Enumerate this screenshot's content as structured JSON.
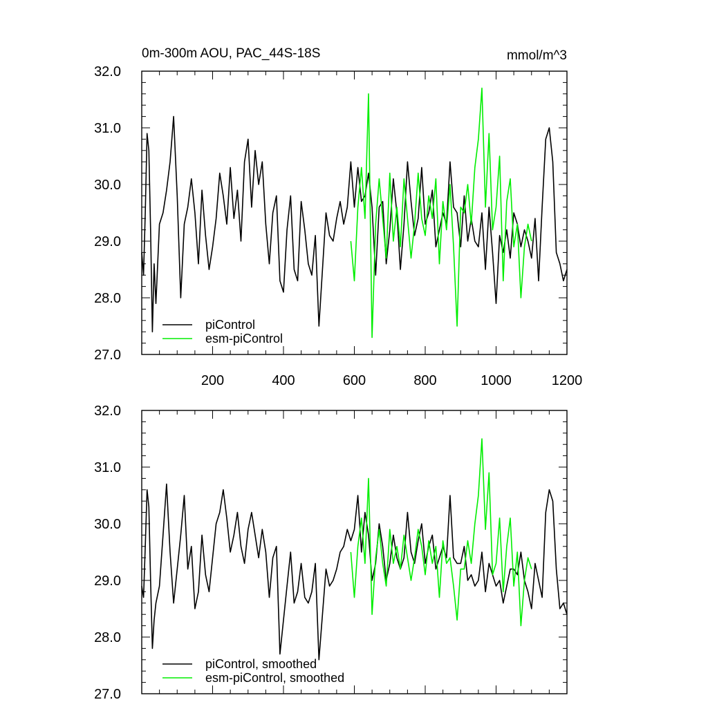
{
  "colors": {
    "piControl": "#000000",
    "esm_piControl": "#00ee00",
    "axis": "#000000",
    "background": "#ffffff"
  },
  "chart_data": [
    {
      "type": "line",
      "title": "0m-300m AOU, PAC_44S-18S",
      "units": "mmol/m^3",
      "xlim": [
        0,
        1200
      ],
      "ylim": [
        27.0,
        32.0
      ],
      "xtick_labels": [
        "200",
        "400",
        "600",
        "800",
        "1000",
        "1200"
      ],
      "xtick_values": [
        200,
        400,
        600,
        800,
        1000,
        1200
      ],
      "ytick_labels": [
        "27.0",
        "28.0",
        "29.0",
        "30.0",
        "31.0",
        "32.0"
      ],
      "ytick_values": [
        27,
        28,
        29,
        30,
        31,
        32
      ],
      "grid": false,
      "legend_position": "bottom-left",
      "series": [
        {
          "name": "piControl",
          "color": "#000000",
          "x": [
            0,
            5,
            10,
            15,
            20,
            25,
            30,
            35,
            40,
            50,
            60,
            70,
            80,
            90,
            100,
            110,
            120,
            130,
            140,
            150,
            160,
            170,
            180,
            190,
            200,
            210,
            220,
            230,
            240,
            250,
            260,
            270,
            280,
            290,
            300,
            310,
            320,
            330,
            340,
            350,
            360,
            370,
            380,
            390,
            400,
            410,
            420,
            430,
            440,
            450,
            460,
            470,
            480,
            490,
            500,
            510,
            520,
            530,
            540,
            550,
            560,
            570,
            580,
            590,
            600,
            610,
            620,
            630,
            640,
            650,
            660,
            670,
            680,
            690,
            700,
            710,
            720,
            730,
            740,
            750,
            760,
            770,
            780,
            790,
            800,
            810,
            820,
            830,
            840,
            850,
            860,
            870,
            880,
            890,
            900,
            910,
            920,
            930,
            940,
            950,
            960,
            970,
            980,
            990,
            1000,
            1010,
            1020,
            1030,
            1040,
            1050,
            1060,
            1070,
            1080,
            1090,
            1100,
            1110,
            1120,
            1130,
            1140,
            1150,
            1160,
            1170,
            1180,
            1190,
            1200
          ],
          "y": [
            28.8,
            28.4,
            29.5,
            30.9,
            30.6,
            29.2,
            27.4,
            28.6,
            27.9,
            29.3,
            29.5,
            29.9,
            30.4,
            31.2,
            29.8,
            28.0,
            29.3,
            29.6,
            30.1,
            29.5,
            28.6,
            29.9,
            29.1,
            28.5,
            28.9,
            29.4,
            30.2,
            29.8,
            29.3,
            30.3,
            29.4,
            29.9,
            29.0,
            30.4,
            30.8,
            29.6,
            30.6,
            30.0,
            30.4,
            29.3,
            28.6,
            29.5,
            29.8,
            28.3,
            28.1,
            29.2,
            29.8,
            28.5,
            28.3,
            29.7,
            29.2,
            28.6,
            28.4,
            29.1,
            27.5,
            28.5,
            29.5,
            29.1,
            29.0,
            29.4,
            29.7,
            29.3,
            29.6,
            30.4,
            29.6,
            30.3,
            29.7,
            29.8,
            30.2,
            29.6,
            28.4,
            29.6,
            29.7,
            28.6,
            29.2,
            30.1,
            29.5,
            28.5,
            29.3,
            30.4,
            29.7,
            29.1,
            29.4,
            30.3,
            29.3,
            29.5,
            29.9,
            28.9,
            29.2,
            29.5,
            29.3,
            30.4,
            29.6,
            29.5,
            28.9,
            29.8,
            29.0,
            29.4,
            29.0,
            28.9,
            29.5,
            28.5,
            29.6,
            28.8,
            27.9,
            29.1,
            28.8,
            29.2,
            28.7,
            29.5,
            29.3,
            28.9,
            29.2,
            29.0,
            28.7,
            29.4,
            28.3,
            29.6,
            30.8,
            31.0,
            30.4,
            28.8,
            28.6,
            28.3,
            28.5
          ]
        },
        {
          "name": "esm-piControl",
          "color": "#00ee00",
          "x": [
            590,
            600,
            610,
            620,
            630,
            640,
            650,
            660,
            670,
            680,
            690,
            700,
            710,
            720,
            730,
            740,
            750,
            760,
            770,
            780,
            790,
            800,
            810,
            820,
            830,
            840,
            850,
            860,
            870,
            880,
            890,
            900,
            910,
            920,
            930,
            940,
            950,
            960,
            970,
            980,
            990,
            1000,
            1010,
            1020,
            1030,
            1040,
            1050,
            1060,
            1070,
            1080,
            1090,
            1100
          ],
          "y": [
            29.0,
            28.3,
            29.6,
            30.3,
            29.4,
            31.6,
            27.3,
            29.3,
            30.1,
            29.4,
            28.7,
            30.2,
            29.0,
            29.6,
            28.9,
            30.1,
            29.4,
            28.7,
            29.3,
            30.2,
            29.4,
            29.1,
            29.8,
            29.4,
            30.1,
            28.6,
            29.7,
            29.2,
            30.0,
            28.9,
            27.5,
            29.6,
            29.5,
            30.0,
            29.3,
            30.3,
            30.8,
            31.7,
            29.6,
            30.9,
            29.2,
            29.6,
            30.5,
            28.3,
            29.7,
            30.1,
            28.9,
            29.3,
            28.0,
            28.9,
            29.3,
            29.0
          ]
        }
      ]
    },
    {
      "type": "line",
      "title": "",
      "xlim": [
        0,
        1200
      ],
      "ylim": [
        27.0,
        32.0
      ],
      "ytick_labels": [
        "27.0",
        "28.0",
        "29.0",
        "30.0",
        "31.0",
        "32.0"
      ],
      "ytick_values": [
        27,
        28,
        29,
        30,
        31,
        32
      ],
      "grid": false,
      "legend_position": "bottom-left",
      "series": [
        {
          "name": "piControl, smoothed",
          "color": "#000000",
          "x": [
            0,
            5,
            10,
            15,
            20,
            25,
            30,
            35,
            40,
            50,
            60,
            70,
            80,
            90,
            100,
            110,
            120,
            130,
            140,
            150,
            160,
            170,
            180,
            190,
            200,
            210,
            220,
            230,
            240,
            250,
            260,
            270,
            280,
            290,
            300,
            310,
            320,
            330,
            340,
            350,
            360,
            370,
            380,
            390,
            400,
            410,
            420,
            430,
            440,
            450,
            460,
            470,
            480,
            490,
            500,
            510,
            520,
            530,
            540,
            550,
            560,
            570,
            580,
            590,
            600,
            610,
            620,
            630,
            640,
            650,
            660,
            670,
            680,
            690,
            700,
            710,
            720,
            730,
            740,
            750,
            760,
            770,
            780,
            790,
            800,
            810,
            820,
            830,
            840,
            850,
            860,
            870,
            880,
            890,
            900,
            910,
            920,
            930,
            940,
            950,
            960,
            970,
            980,
            990,
            1000,
            1010,
            1020,
            1030,
            1040,
            1050,
            1060,
            1070,
            1080,
            1090,
            1100,
            1110,
            1120,
            1130,
            1140,
            1150,
            1160,
            1170,
            1180,
            1190,
            1200
          ],
          "y": [
            28.9,
            28.7,
            29.6,
            30.6,
            30.3,
            29.0,
            27.8,
            28.3,
            28.6,
            28.9,
            29.8,
            30.7,
            29.5,
            28.6,
            29.2,
            29.8,
            30.5,
            29.2,
            29.6,
            28.5,
            28.8,
            29.8,
            29.1,
            28.8,
            29.4,
            30.0,
            30.2,
            30.6,
            30.1,
            29.5,
            29.8,
            30.2,
            29.6,
            29.3,
            29.9,
            30.2,
            29.8,
            29.4,
            29.9,
            29.5,
            28.7,
            29.4,
            29.6,
            27.7,
            28.3,
            28.9,
            29.5,
            28.6,
            28.8,
            29.3,
            28.7,
            28.6,
            28.8,
            29.3,
            27.6,
            28.4,
            29.2,
            28.9,
            29.0,
            29.2,
            29.5,
            29.6,
            29.9,
            29.7,
            29.9,
            30.5,
            29.5,
            30.2,
            29.8,
            29.0,
            29.3,
            30.0,
            29.6,
            29.0,
            29.3,
            29.8,
            29.4,
            29.2,
            29.4,
            30.2,
            29.5,
            29.3,
            29.7,
            30.0,
            29.3,
            29.6,
            29.8,
            29.2,
            29.4,
            29.6,
            29.4,
            30.5,
            29.4,
            29.3,
            29.3,
            29.6,
            29.0,
            29.1,
            28.9,
            29.0,
            29.5,
            28.8,
            29.3,
            29.1,
            28.9,
            29.0,
            28.6,
            28.9,
            29.2,
            29.2,
            29.1,
            29.5,
            29.0,
            28.8,
            28.5,
            29.3,
            29.0,
            28.7,
            30.2,
            30.6,
            30.4,
            29.2,
            28.5,
            28.6,
            28.4
          ]
        },
        {
          "name": "esm-piControl, smoothed",
          "color": "#00ee00",
          "x": [
            590,
            600,
            610,
            620,
            630,
            640,
            650,
            660,
            670,
            680,
            690,
            700,
            710,
            720,
            730,
            740,
            750,
            760,
            770,
            780,
            790,
            800,
            810,
            820,
            830,
            840,
            850,
            860,
            870,
            880,
            890,
            900,
            910,
            920,
            930,
            940,
            950,
            960,
            970,
            980,
            990,
            1000,
            1010,
            1020,
            1030,
            1040,
            1050,
            1060,
            1070,
            1080,
            1090,
            1100
          ],
          "y": [
            29.5,
            28.7,
            29.6,
            30.1,
            29.3,
            30.8,
            28.4,
            29.4,
            29.9,
            29.3,
            28.9,
            29.9,
            29.3,
            29.6,
            29.2,
            29.8,
            29.4,
            29.0,
            29.4,
            29.9,
            29.6,
            29.1,
            29.7,
            29.3,
            29.6,
            28.7,
            29.7,
            29.3,
            29.4,
            28.9,
            28.3,
            29.2,
            29.2,
            29.7,
            29.3,
            30.0,
            30.5,
            31.5,
            29.9,
            30.9,
            29.1,
            29.3,
            30.1,
            28.8,
            29.6,
            30.1,
            28.9,
            29.5,
            28.2,
            29.0,
            29.4,
            29.2
          ]
        }
      ]
    }
  ]
}
